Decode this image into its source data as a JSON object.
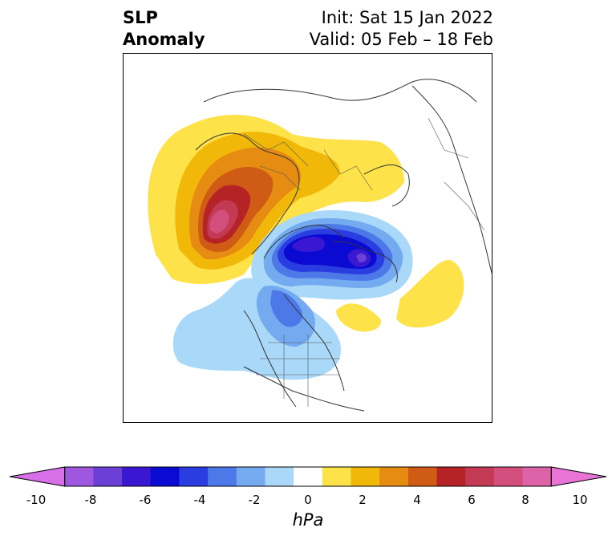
{
  "title": {
    "left_line1": "SLP",
    "left_line2": "Anomaly",
    "right_line1": "Init: Sat 15 Jan 2022",
    "right_line2": "Valid: 05 Feb – 18 Feb"
  },
  "colorbar": {
    "unit": "hPa",
    "ticks": [
      "-10",
      "-8",
      "-6",
      "-4",
      "-2",
      "0",
      "2",
      "4",
      "6",
      "8",
      "10"
    ],
    "levels": [
      -10,
      -9,
      -8,
      -7,
      -6,
      -5,
      -4,
      -3,
      -2,
      -1,
      1,
      2,
      3,
      4,
      5,
      6,
      7,
      8,
      9,
      10
    ],
    "colors": [
      "#d66fe8",
      "#a057e0",
      "#6c3fd6",
      "#3a17d0",
      "#0a0ad2",
      "#2a3de0",
      "#4d78e8",
      "#73aaf0",
      "#a9d8f8",
      "#ffffff",
      "#fde24a",
      "#f1b80a",
      "#e68c12",
      "#cf5b15",
      "#b52326",
      "#c33a55",
      "#d24f7d",
      "#dd63a8",
      "#e874d6"
    ]
  },
  "map": {
    "projection": "north-polar-stereographic",
    "features": {
      "positive_anomaly": "Northern/Eastern Europe and Siberia, max ~8 hPa",
      "negative_anomaly": "Arctic/Greenland/Canada, min ~-8 hPa",
      "weak_negative": "North America and North Pacific"
    }
  }
}
